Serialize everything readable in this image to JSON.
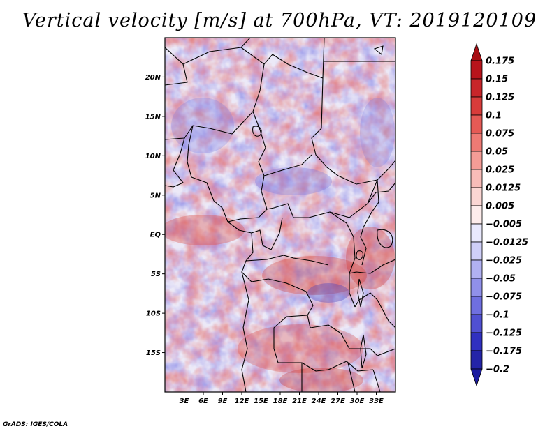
{
  "title": "Vertical velocity [m/s] at 700hPa, VT: 2019120109",
  "credit": "GrADS: IGES/COLA",
  "map": {
    "lon_range": [
      0,
      36
    ],
    "lat_range": [
      -20,
      25
    ],
    "lat_ticks": [
      {
        "value": 20,
        "label": "20N"
      },
      {
        "value": 15,
        "label": "15N"
      },
      {
        "value": 10,
        "label": "10N"
      },
      {
        "value": 5,
        "label": "5N"
      },
      {
        "value": 0,
        "label": "EQ"
      },
      {
        "value": -5,
        "label": "5S"
      },
      {
        "value": -10,
        "label": "10S"
      },
      {
        "value": -15,
        "label": "15S"
      }
    ],
    "lon_ticks": [
      {
        "value": 3,
        "label": "3E"
      },
      {
        "value": 6,
        "label": "6E"
      },
      {
        "value": 9,
        "label": "9E"
      },
      {
        "value": 12,
        "label": "12E"
      },
      {
        "value": 15,
        "label": "15E"
      },
      {
        "value": 18,
        "label": "18E"
      },
      {
        "value": 21,
        "label": "21E"
      },
      {
        "value": 24,
        "label": "24E"
      },
      {
        "value": 27,
        "label": "27E"
      },
      {
        "value": 30,
        "label": "30E"
      },
      {
        "value": 33,
        "label": "33E"
      }
    ]
  },
  "colorbar": {
    "levels": [
      {
        "label": "0.175",
        "color": "#b8141c"
      },
      {
        "label": "0.15",
        "color": "#c8262a"
      },
      {
        "label": "0.125",
        "color": "#d83c3a"
      },
      {
        "label": "0.1",
        "color": "#e55a55"
      },
      {
        "label": "0.075",
        "color": "#ee7a74"
      },
      {
        "label": "0.05",
        "color": "#f49c96"
      },
      {
        "label": "0.025",
        "color": "#f8bcb8"
      },
      {
        "label": "0.0125",
        "color": "#fbd6d3"
      },
      {
        "label": "0.005",
        "color": "#fdeceb"
      },
      {
        "label": "−0.005",
        "color": "#ffffff"
      },
      {
        "label": "−0.0125",
        "color": "#e9e9fd"
      },
      {
        "label": "−0.025",
        "color": "#cfcff8"
      },
      {
        "label": "−0.05",
        "color": "#b1b1f2"
      },
      {
        "label": "−0.075",
        "color": "#9090ea"
      },
      {
        "label": "−0.1",
        "color": "#6f6fe0"
      },
      {
        "label": "−0.125",
        "color": "#5050d2"
      },
      {
        "label": "−0.175",
        "color": "#3030c0"
      },
      {
        "label": "−0.2",
        "color": "#2424a8"
      }
    ],
    "top_color": "#a80f14",
    "bottom_color": "#1c1ca0"
  }
}
